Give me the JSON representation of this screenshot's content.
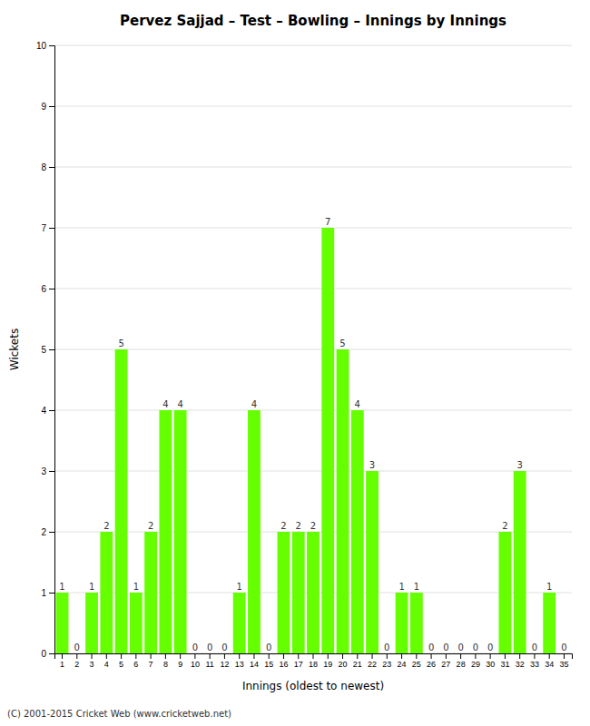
{
  "chart_data": {
    "type": "bar",
    "title": "Pervez Sajjad – Test – Bowling – Innings by Innings",
    "x_label": "Innings (oldest to newest)",
    "y_label": "Wickets",
    "categories": [
      "1",
      "2",
      "3",
      "4",
      "5",
      "6",
      "7",
      "8",
      "9",
      "10",
      "11",
      "12",
      "13",
      "14",
      "15",
      "16",
      "17",
      "18",
      "19",
      "20",
      "21",
      "22",
      "23",
      "24",
      "25",
      "26",
      "27",
      "28",
      "29",
      "30",
      "31",
      "32",
      "33",
      "34",
      "35"
    ],
    "values": [
      1,
      0,
      1,
      2,
      5,
      1,
      2,
      4,
      4,
      0,
      0,
      0,
      1,
      4,
      0,
      2,
      2,
      2,
      7,
      5,
      4,
      3,
      0,
      1,
      1,
      0,
      0,
      0,
      0,
      0,
      2,
      3,
      0,
      1,
      0
    ],
    "color": "#66ff00",
    "ylim": [
      0,
      10
    ],
    "yticks": [
      0,
      1,
      2,
      3,
      4,
      5,
      6,
      7,
      8,
      9,
      10
    ],
    "grid": true,
    "data_labels": true,
    "annotations": [
      "(C) 2001-2015 Cricket Web (www.cricketweb.net)"
    ]
  }
}
